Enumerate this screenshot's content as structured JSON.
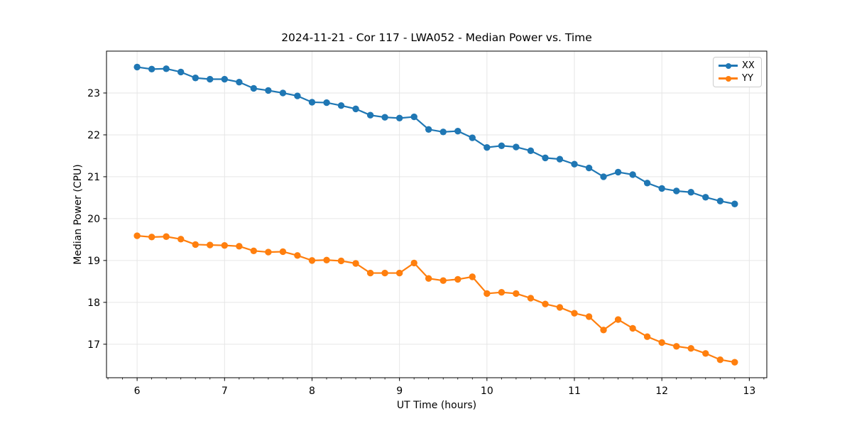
{
  "chart_data": {
    "type": "line",
    "title": "2024-11-21 - Cor 117 - LWA052 - Median Power vs. Time",
    "xlabel": "UT Time (hours)",
    "ylabel": "Median Power (CPU)",
    "xlim": [
      5.65,
      13.2
    ],
    "ylim": [
      16.2,
      24.0
    ],
    "x_ticks": [
      6,
      7,
      8,
      9,
      10,
      11,
      12,
      13
    ],
    "y_ticks": [
      17,
      18,
      19,
      20,
      21,
      22,
      23
    ],
    "x_minor_tick_step_hours": 0.1667,
    "grid": true,
    "grid_color": "#e6e6e6",
    "axis_color": "#000000",
    "marker": "circle",
    "legend_position": "upper right",
    "x": [
      6.0,
      6.167,
      6.333,
      6.5,
      6.667,
      6.833,
      7.0,
      7.167,
      7.333,
      7.5,
      7.667,
      7.833,
      8.0,
      8.167,
      8.333,
      8.5,
      8.667,
      8.833,
      9.0,
      9.167,
      9.333,
      9.5,
      9.667,
      9.833,
      10.0,
      10.167,
      10.333,
      10.5,
      10.667,
      10.833,
      11.0,
      11.167,
      11.333,
      11.5,
      11.667,
      11.833,
      12.0,
      12.167,
      12.333,
      12.5,
      12.667,
      12.833
    ],
    "series": [
      {
        "name": "XX",
        "color": "#1f77b4",
        "values": [
          23.62,
          23.57,
          23.58,
          23.5,
          23.36,
          23.33,
          23.33,
          23.26,
          23.11,
          23.06,
          23.0,
          22.93,
          22.78,
          22.77,
          22.7,
          22.62,
          22.47,
          22.42,
          22.4,
          22.43,
          22.13,
          22.07,
          22.09,
          21.93,
          21.7,
          21.74,
          21.71,
          21.62,
          21.45,
          21.42,
          21.3,
          21.21,
          21.0,
          21.11,
          21.05,
          20.85,
          20.72,
          20.66,
          20.63,
          20.51,
          20.42,
          20.35
        ]
      },
      {
        "name": "YY",
        "color": "#ff7f0e",
        "values": [
          19.59,
          19.56,
          19.57,
          19.51,
          19.38,
          19.37,
          19.36,
          19.34,
          19.23,
          19.2,
          19.21,
          19.12,
          19.0,
          19.01,
          18.99,
          18.93,
          18.7,
          18.7,
          18.7,
          18.94,
          18.57,
          18.52,
          18.55,
          18.61,
          18.21,
          18.24,
          18.21,
          18.1,
          17.96,
          17.88,
          17.74,
          17.66,
          17.34,
          17.59,
          17.38,
          17.18,
          17.04,
          16.95,
          16.9,
          16.78,
          16.63,
          16.57
        ]
      }
    ]
  }
}
